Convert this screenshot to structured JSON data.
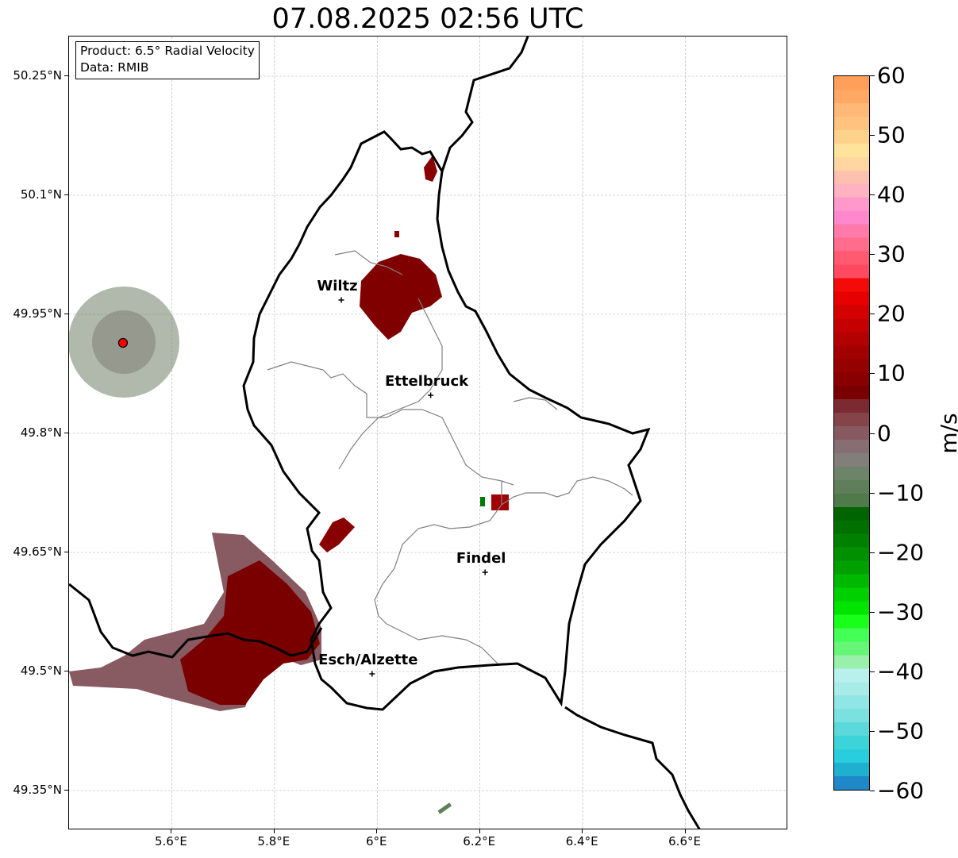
{
  "title": "07.08.2025 02:56 UTC",
  "info_box": {
    "product": "Product: 6.5° Radial Velocity",
    "data": "Data: RMIB"
  },
  "map": {
    "lon_range": [
      5.4,
      6.8
    ],
    "lat_range": [
      49.3,
      50.3
    ],
    "lat_ticks": [
      {
        "value": 50.25,
        "label": "50.25°N"
      },
      {
        "value": 50.1,
        "label": "50.1°N"
      },
      {
        "value": 49.95,
        "label": "49.95°N"
      },
      {
        "value": 49.8,
        "label": "49.8°N"
      },
      {
        "value": 49.65,
        "label": "49.65°N"
      },
      {
        "value": 49.5,
        "label": "49.5°N"
      },
      {
        "value": 49.35,
        "label": "49.35°N"
      }
    ],
    "lon_ticks": [
      {
        "value": 5.6,
        "label": "5.6°E"
      },
      {
        "value": 5.8,
        "label": "5.8°E"
      },
      {
        "value": 6.0,
        "label": "6°E"
      },
      {
        "value": 6.2,
        "label": "6.2°E"
      },
      {
        "value": 6.4,
        "label": "6.4°E"
      },
      {
        "value": 6.6,
        "label": "6.6°E"
      }
    ],
    "grid": true,
    "radar_site": {
      "lon": 5.505,
      "lat": 49.914,
      "color": "#ff0000"
    },
    "cities": [
      {
        "name": "Wiltz",
        "lon": 5.93,
        "lat": 49.968
      },
      {
        "name": "Ettelbruck",
        "lon": 6.104,
        "lat": 49.848
      },
      {
        "name": "Findel",
        "lon": 6.21,
        "lat": 49.625
      },
      {
        "name": "Esch/Alzette",
        "lon": 5.99,
        "lat": 49.497
      }
    ]
  },
  "colorbar": {
    "unit": "m/s",
    "min": -60,
    "max": 60,
    "ticks": [
      {
        "value": 60,
        "label": "60"
      },
      {
        "value": 50,
        "label": "50"
      },
      {
        "value": 40,
        "label": "40"
      },
      {
        "value": 30,
        "label": "30"
      },
      {
        "value": 20,
        "label": "20"
      },
      {
        "value": 10,
        "label": "10"
      },
      {
        "value": 0,
        "label": "0"
      },
      {
        "value": -10,
        "label": "−10"
      },
      {
        "value": -20,
        "label": "−20"
      },
      {
        "value": -30,
        "label": "−30"
      },
      {
        "value": -40,
        "label": "−40"
      },
      {
        "value": -50,
        "label": "−50"
      },
      {
        "value": -60,
        "label": "−60"
      }
    ],
    "colors_top_to_bottom": [
      "#ff9f5a",
      "#ffa866",
      "#ffb877",
      "#ffc27f",
      "#ffd28c",
      "#ffe39a",
      "#ffd6a2",
      "#ffc0b0",
      "#ffb3c0",
      "#ff99cc",
      "#ff88cc",
      "#ff7aaa",
      "#ff6c8c",
      "#ff5a70",
      "#ff4a60",
      "#f50a0a",
      "#e60000",
      "#d50000",
      "#c40000",
      "#b30000",
      "#a20000",
      "#950000",
      "#880000",
      "#7a0000",
      "#7a2a30",
      "#85434a",
      "#875a62",
      "#876e72",
      "#827e7a",
      "#6e8468",
      "#5f7e5a",
      "#4f7a4a",
      "#006400",
      "#007000",
      "#008000",
      "#009000",
      "#00a000",
      "#00b800",
      "#00d000",
      "#00e400",
      "#1aff1a",
      "#44ff55",
      "#66f577",
      "#99f0aa",
      "#b8f0ee",
      "#a8ece8",
      "#90e6e4",
      "#7ae0e0",
      "#5ad8da",
      "#3cd4d8",
      "#28cede",
      "#1fb0d0",
      "#1e88c8"
    ]
  }
}
